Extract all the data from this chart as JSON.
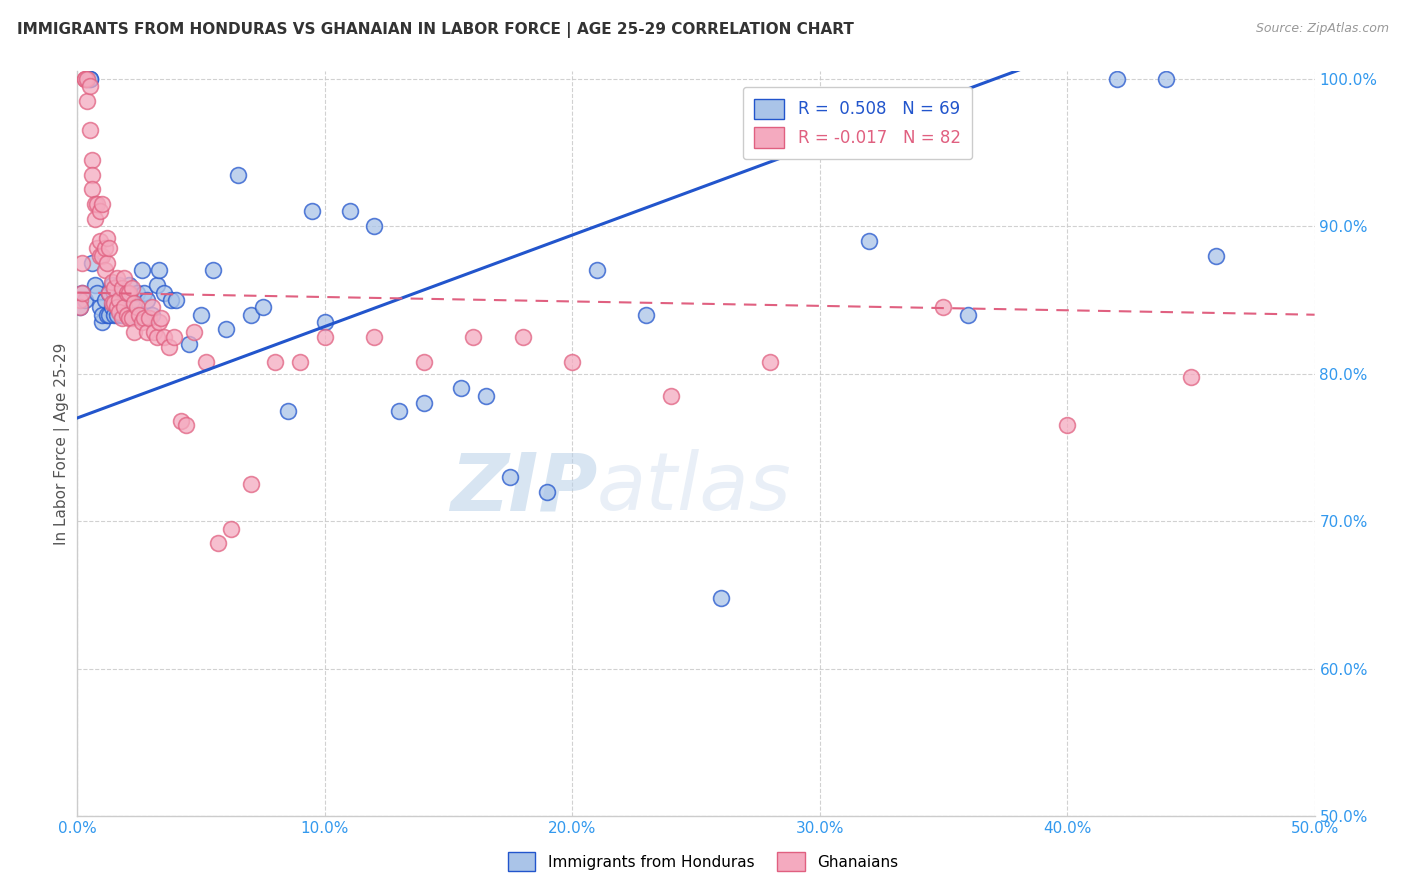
{
  "title": "IMMIGRANTS FROM HONDURAS VS GHANAIAN IN LABOR FORCE | AGE 25-29 CORRELATION CHART",
  "source": "Source: ZipAtlas.com",
  "ylabel": "In Labor Force | Age 25-29",
  "xlim": [
    0.0,
    0.5
  ],
  "ylim": [
    0.5,
    1.005
  ],
  "xtick_labels": [
    "0.0%",
    "10.0%",
    "20.0%",
    "30.0%",
    "40.0%",
    "50.0%"
  ],
  "xtick_values": [
    0.0,
    0.1,
    0.2,
    0.3,
    0.4,
    0.5
  ],
  "ytick_labels": [
    "50.0%",
    "60.0%",
    "70.0%",
    "80.0%",
    "90.0%",
    "100.0%"
  ],
  "ytick_values": [
    0.5,
    0.6,
    0.7,
    0.8,
    0.9,
    1.0
  ],
  "blue_R": 0.508,
  "blue_N": 69,
  "pink_R": -0.017,
  "pink_N": 82,
  "blue_color": "#aac4e8",
  "pink_color": "#f4aabf",
  "blue_line_color": "#2255cc",
  "pink_line_color": "#e06080",
  "legend_label_blue": "Immigrants from Honduras",
  "legend_label_pink": "Ghanaians",
  "watermark_zip": "ZIP",
  "watermark_atlas": "atlas",
  "blue_trend": [
    0.0,
    0.5,
    0.77,
    1.08
  ],
  "pink_trend": [
    0.0,
    0.5,
    0.855,
    0.84
  ],
  "blue_scatter_x": [
    0.001,
    0.002,
    0.003,
    0.004,
    0.005,
    0.005,
    0.006,
    0.007,
    0.008,
    0.009,
    0.01,
    0.01,
    0.011,
    0.012,
    0.013,
    0.013,
    0.014,
    0.014,
    0.015,
    0.015,
    0.016,
    0.016,
    0.017,
    0.017,
    0.018,
    0.018,
    0.019,
    0.02,
    0.02,
    0.021,
    0.022,
    0.023,
    0.024,
    0.025,
    0.026,
    0.027,
    0.028,
    0.03,
    0.032,
    0.033,
    0.035,
    0.038,
    0.04,
    0.045,
    0.05,
    0.055,
    0.06,
    0.065,
    0.07,
    0.075,
    0.085,
    0.095,
    0.1,
    0.11,
    0.12,
    0.13,
    0.14,
    0.155,
    0.165,
    0.175,
    0.19,
    0.21,
    0.23,
    0.26,
    0.32,
    0.36,
    0.42,
    0.44,
    0.46
  ],
  "blue_scatter_y": [
    0.845,
    0.855,
    0.85,
    1.0,
    1.0,
    1.0,
    0.875,
    0.86,
    0.855,
    0.845,
    0.835,
    0.84,
    0.85,
    0.84,
    0.855,
    0.84,
    0.86,
    0.845,
    0.855,
    0.84,
    0.85,
    0.84,
    0.86,
    0.85,
    0.855,
    0.84,
    0.85,
    0.855,
    0.84,
    0.86,
    0.85,
    0.84,
    0.855,
    0.84,
    0.87,
    0.855,
    0.85,
    0.84,
    0.86,
    0.87,
    0.855,
    0.85,
    0.85,
    0.82,
    0.84,
    0.87,
    0.83,
    0.935,
    0.84,
    0.845,
    0.775,
    0.91,
    0.835,
    0.91,
    0.9,
    0.775,
    0.78,
    0.79,
    0.785,
    0.73,
    0.72,
    0.87,
    0.84,
    0.648,
    0.89,
    0.84,
    1.0,
    1.0,
    0.88
  ],
  "pink_scatter_x": [
    0.001,
    0.001,
    0.002,
    0.002,
    0.003,
    0.003,
    0.004,
    0.004,
    0.005,
    0.005,
    0.006,
    0.006,
    0.006,
    0.007,
    0.007,
    0.008,
    0.008,
    0.009,
    0.009,
    0.009,
    0.01,
    0.01,
    0.011,
    0.011,
    0.012,
    0.012,
    0.013,
    0.013,
    0.014,
    0.014,
    0.015,
    0.015,
    0.016,
    0.016,
    0.017,
    0.017,
    0.018,
    0.018,
    0.019,
    0.019,
    0.02,
    0.02,
    0.021,
    0.021,
    0.022,
    0.022,
    0.023,
    0.023,
    0.024,
    0.025,
    0.026,
    0.027,
    0.028,
    0.029,
    0.03,
    0.031,
    0.032,
    0.033,
    0.034,
    0.035,
    0.037,
    0.039,
    0.042,
    0.044,
    0.047,
    0.052,
    0.057,
    0.062,
    0.07,
    0.08,
    0.09,
    0.1,
    0.12,
    0.14,
    0.16,
    0.18,
    0.2,
    0.24,
    0.28,
    0.35,
    0.4,
    0.45
  ],
  "pink_scatter_y": [
    0.85,
    0.845,
    0.875,
    0.855,
    1.0,
    1.0,
    1.0,
    0.985,
    0.995,
    0.965,
    0.945,
    0.935,
    0.925,
    0.915,
    0.905,
    0.915,
    0.885,
    0.91,
    0.89,
    0.88,
    0.915,
    0.88,
    0.885,
    0.87,
    0.892,
    0.875,
    0.885,
    0.855,
    0.862,
    0.848,
    0.858,
    0.848,
    0.865,
    0.845,
    0.85,
    0.842,
    0.858,
    0.838,
    0.865,
    0.845,
    0.855,
    0.84,
    0.855,
    0.838,
    0.858,
    0.838,
    0.848,
    0.828,
    0.845,
    0.84,
    0.835,
    0.838,
    0.828,
    0.838,
    0.845,
    0.828,
    0.825,
    0.835,
    0.838,
    0.825,
    0.818,
    0.825,
    0.768,
    0.765,
    0.828,
    0.808,
    0.685,
    0.695,
    0.725,
    0.808,
    0.808,
    0.825,
    0.825,
    0.808,
    0.825,
    0.825,
    0.808,
    0.785,
    0.808,
    0.845,
    0.765,
    0.798
  ]
}
